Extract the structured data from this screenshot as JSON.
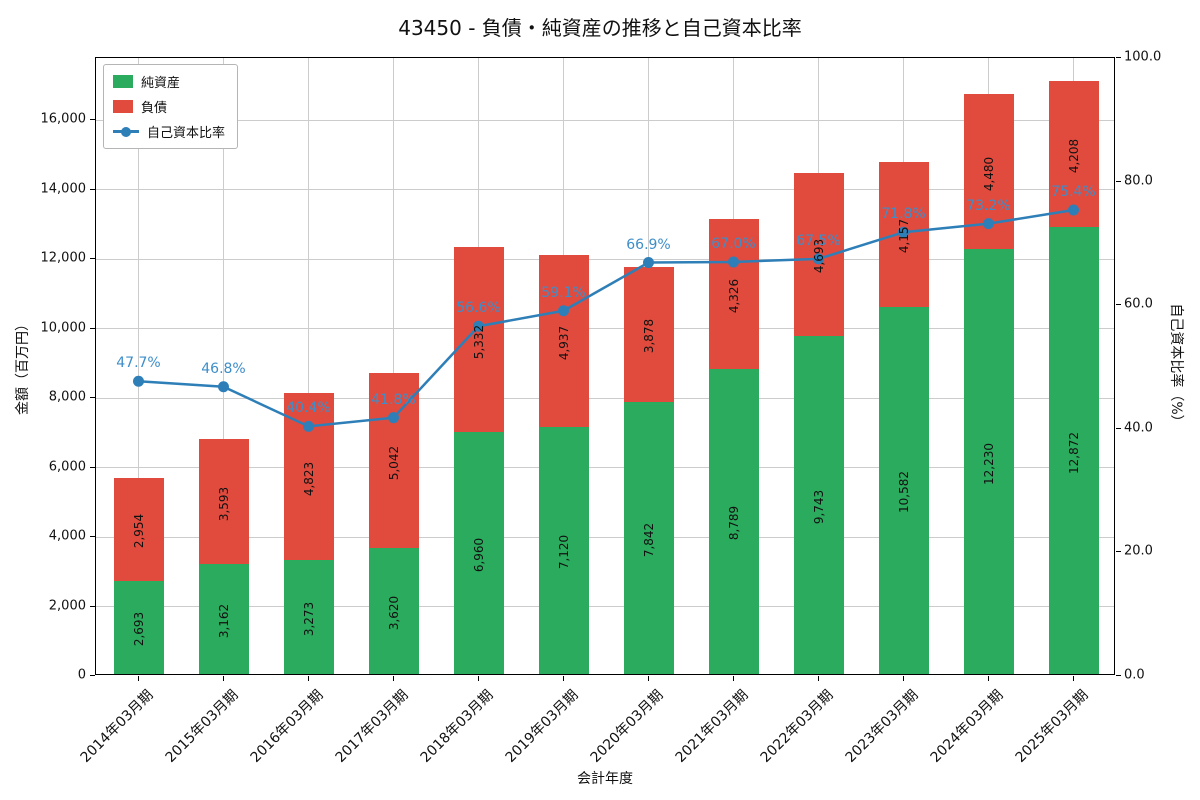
{
  "title": "43450 - 負債・純資産の推移と自己資本比率",
  "axes": {
    "x_label": "会計年度",
    "y_left_label": "金額（百万円）",
    "y_right_label": "自己資本比率（%）"
  },
  "legend": {
    "items": [
      {
        "label": "純資産",
        "kind": "box",
        "color": "#2bab5d"
      },
      {
        "label": "負債",
        "kind": "box",
        "color": "#e14b3e"
      },
      {
        "label": "自己資本比率",
        "kind": "line",
        "color": "#2e7fb8"
      }
    ]
  },
  "colors": {
    "equity": "#2bab5d",
    "liabilities": "#e14b3e",
    "ratio_line": "#2e7fb8",
    "ratio_label": "#3d8ec9",
    "grid": "#cccccc"
  },
  "chart_data": {
    "type": "bar",
    "stacked": true,
    "grid": true,
    "legend_position": "upper-left",
    "categories": [
      "2014年03月期",
      "2015年03月期",
      "2016年03月期",
      "2017年03月期",
      "2018年03月期",
      "2019年03月期",
      "2020年03月期",
      "2021年03月期",
      "2022年03月期",
      "2023年03月期",
      "2024年03月期",
      "2025年03月期"
    ],
    "series": [
      {
        "name": "純資産",
        "type": "bar",
        "axis": "left",
        "values": [
          2693,
          3162,
          3273,
          3620,
          6960,
          7120,
          7842,
          8789,
          9743,
          10582,
          12230,
          12872
        ],
        "labels": [
          "2,693",
          "3,162",
          "3,273",
          "3,620",
          "6,960",
          "7,120",
          "7,842",
          "8,789",
          "9,743",
          "10,582",
          "12,230",
          "12,872"
        ]
      },
      {
        "name": "負債",
        "type": "bar",
        "axis": "left",
        "values": [
          2954,
          3593,
          4823,
          5042,
          5332,
          4937,
          3878,
          4326,
          4693,
          4157,
          4480,
          4208
        ],
        "labels": [
          "2,954",
          "3,593",
          "4,823",
          "5,042",
          "5,332",
          "4,937",
          "3,878",
          "4,326",
          "4,693",
          "4,157",
          "4,480",
          "4,208"
        ]
      },
      {
        "name": "自己資本比率",
        "type": "line",
        "axis": "right",
        "values": [
          47.7,
          46.8,
          40.4,
          41.8,
          56.6,
          59.1,
          66.9,
          67.0,
          67.5,
          71.8,
          73.2,
          75.4
        ],
        "labels": [
          "47.7%",
          "46.8%",
          "40.4%",
          "41.8%",
          "56.6%",
          "59.1%",
          "66.9%",
          "67.0%",
          "67.5%",
          "71.8%",
          "73.2%",
          "75.4%"
        ]
      }
    ],
    "left_axis": {
      "min": 0,
      "max": 17800,
      "ticks": [
        0,
        2000,
        4000,
        6000,
        8000,
        10000,
        12000,
        14000,
        16000
      ],
      "tick_labels": [
        "0",
        "2,000",
        "4,000",
        "6,000",
        "8,000",
        "10,000",
        "12,000",
        "14,000",
        "16,000"
      ]
    },
    "right_axis": {
      "min": 0,
      "max": 100,
      "ticks": [
        0,
        20,
        40,
        60,
        80,
        100
      ],
      "tick_labels": [
        "0.0",
        "20.0",
        "40.0",
        "60.0",
        "80.0",
        "100.0"
      ]
    }
  }
}
